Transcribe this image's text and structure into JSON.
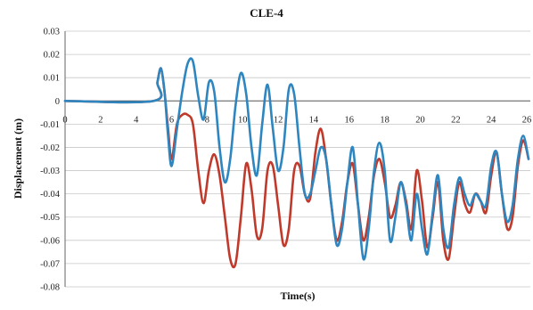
{
  "chart_data": {
    "type": "line",
    "title": "CLE-4",
    "xlabel": "Time(s)",
    "ylabel": "Displacement (m)",
    "xlim": [
      0,
      26.2
    ],
    "ylim": [
      -0.08,
      0.03
    ],
    "x_ticks": [
      0,
      2,
      4,
      6,
      8,
      10,
      12,
      14,
      16,
      18,
      20,
      22,
      24,
      26
    ],
    "y_ticks": [
      0.03,
      0.02,
      0.01,
      0,
      -0.01,
      -0.02,
      -0.03,
      -0.04,
      -0.05,
      -0.06,
      -0.07,
      -0.08
    ],
    "y_tick_labels": [
      "0.03",
      "0.02",
      "0.01",
      "0",
      "-0.01",
      "-0.02",
      "-0.03",
      "-0.04",
      "-0.05",
      "-0.06",
      "-0.07",
      "-0.08"
    ],
    "grid": "horizontal",
    "legend": "none",
    "series": [
      {
        "color": "#c0392b",
        "x": [
          0,
          5.0,
          5.2,
          5.4,
          5.6,
          5.8,
          6.0,
          6.3,
          6.6,
          6.9,
          7.2,
          7.5,
          7.8,
          8.1,
          8.4,
          8.7,
          9.0,
          9.3,
          9.6,
          9.9,
          10.2,
          10.5,
          10.8,
          11.1,
          11.4,
          11.7,
          12.0,
          12.3,
          12.6,
          12.9,
          13.2,
          13.5,
          13.8,
          14.1,
          14.4,
          14.7,
          15.0,
          15.3,
          15.6,
          15.9,
          16.2,
          16.5,
          16.8,
          17.1,
          17.4,
          17.7,
          18.0,
          18.3,
          18.6,
          18.9,
          19.2,
          19.5,
          19.8,
          20.1,
          20.4,
          20.7,
          21.0,
          21.3,
          21.6,
          21.9,
          22.2,
          22.5,
          22.8,
          23.1,
          23.4,
          23.7,
          24.0,
          24.3,
          24.6,
          24.9,
          25.2,
          25.5,
          25.8,
          26.1
        ],
        "y": [
          0,
          0,
          0.008,
          0.014,
          0.004,
          -0.012,
          -0.025,
          -0.01,
          -0.006,
          -0.006,
          -0.01,
          -0.03,
          -0.044,
          -0.03,
          -0.023,
          -0.032,
          -0.05,
          -0.068,
          -0.07,
          -0.05,
          -0.027,
          -0.038,
          -0.058,
          -0.055,
          -0.03,
          -0.028,
          -0.045,
          -0.062,
          -0.055,
          -0.03,
          -0.028,
          -0.04,
          -0.042,
          -0.022,
          -0.012,
          -0.025,
          -0.045,
          -0.06,
          -0.052,
          -0.035,
          -0.027,
          -0.045,
          -0.06,
          -0.05,
          -0.032,
          -0.025,
          -0.035,
          -0.05,
          -0.045,
          -0.035,
          -0.043,
          -0.055,
          -0.03,
          -0.043,
          -0.063,
          -0.05,
          -0.035,
          -0.06,
          -0.068,
          -0.05,
          -0.035,
          -0.044,
          -0.048,
          -0.04,
          -0.043,
          -0.048,
          -0.032,
          -0.022,
          -0.04,
          -0.055,
          -0.05,
          -0.028,
          -0.017,
          -0.025
        ]
      },
      {
        "color": "#2e86c1",
        "x": [
          0,
          5.0,
          5.2,
          5.4,
          5.6,
          5.8,
          6.0,
          6.3,
          6.6,
          6.9,
          7.2,
          7.5,
          7.8,
          8.1,
          8.4,
          8.7,
          9.0,
          9.3,
          9.6,
          9.9,
          10.2,
          10.5,
          10.8,
          11.1,
          11.4,
          11.7,
          12.0,
          12.3,
          12.6,
          12.9,
          13.2,
          13.5,
          13.8,
          14.1,
          14.4,
          14.7,
          15.0,
          15.3,
          15.6,
          15.9,
          16.2,
          16.5,
          16.8,
          17.1,
          17.4,
          17.7,
          18.0,
          18.3,
          18.6,
          18.9,
          19.2,
          19.5,
          19.8,
          20.1,
          20.4,
          20.7,
          21.0,
          21.3,
          21.6,
          21.9,
          22.2,
          22.5,
          22.8,
          23.1,
          23.4,
          23.7,
          24.0,
          24.3,
          24.6,
          24.9,
          25.2,
          25.5,
          25.8,
          26.1
        ],
        "y": [
          0,
          0,
          0.008,
          0.014,
          0.004,
          -0.015,
          -0.028,
          -0.012,
          0.004,
          0.016,
          0.017,
          0.002,
          -0.008,
          0.008,
          0.004,
          -0.02,
          -0.035,
          -0.025,
          -0.002,
          0.012,
          0.003,
          -0.02,
          -0.032,
          -0.01,
          0.007,
          -0.012,
          -0.03,
          -0.02,
          0.005,
          0.003,
          -0.02,
          -0.04,
          -0.04,
          -0.03,
          -0.02,
          -0.025,
          -0.045,
          -0.062,
          -0.055,
          -0.035,
          -0.02,
          -0.045,
          -0.068,
          -0.055,
          -0.03,
          -0.018,
          -0.03,
          -0.06,
          -0.05,
          -0.035,
          -0.045,
          -0.06,
          -0.04,
          -0.055,
          -0.066,
          -0.048,
          -0.032,
          -0.055,
          -0.063,
          -0.045,
          -0.033,
          -0.04,
          -0.045,
          -0.04,
          -0.043,
          -0.045,
          -0.028,
          -0.022,
          -0.04,
          -0.052,
          -0.045,
          -0.025,
          -0.015,
          -0.025
        ]
      }
    ]
  }
}
